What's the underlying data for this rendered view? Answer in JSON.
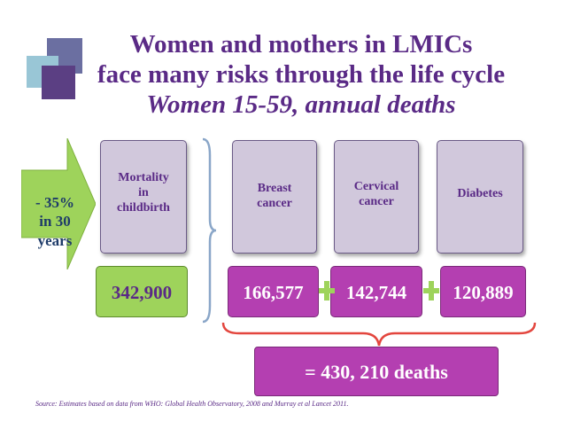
{
  "title": {
    "line1": "Women and mothers in LMICs",
    "line2": "face many risks through the life cycle",
    "line3": "Women 15-59, annual deaths"
  },
  "arrow": {
    "line1": "- 35%",
    "line2": "in 30",
    "line3": "years",
    "color": "#9ed35b"
  },
  "categories": [
    {
      "label_lines": [
        "Mortality",
        "in",
        "childbirth"
      ],
      "value": "342,900"
    },
    {
      "label_lines": [
        "Breast",
        "cancer"
      ],
      "value": "166,577"
    },
    {
      "label_lines": [
        "Cervical",
        "cancer"
      ],
      "value": "142,744"
    },
    {
      "label_lines": [
        "Diabetes"
      ],
      "value": "120,889"
    }
  ],
  "total": "= 430, 210 deaths",
  "source": "Source: Estimates based on data from WHO: Global Health Observatory, 2008 and Murray et al Lancet 2011.",
  "colors": {
    "title": "#5a2a86",
    "category_box": "#d1c8dc",
    "green_value": "#9ed35b",
    "magenta_value": "#b43fb1",
    "brace": "#e3463e",
    "plus": "#9ed35b"
  }
}
